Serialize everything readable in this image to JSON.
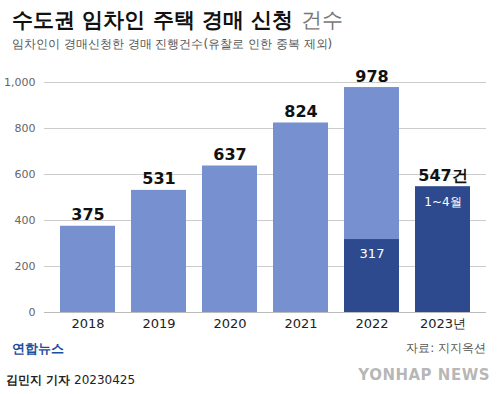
{
  "chart_data": {
    "type": "bar",
    "title": "수도권 임차인 주택 경매 신청 건수",
    "subtitle": "임차인이 경매신청한 경매 진행건수(유찰로 인한 중복 제외)",
    "categories": [
      "2018",
      "2019",
      "2020",
      "2021",
      "2022",
      "2023년"
    ],
    "values": [
      375,
      531,
      637,
      824,
      978,
      547
    ],
    "value_labels": [
      "375",
      "531",
      "637",
      "824",
      "978",
      "547건"
    ],
    "colors": [
      "#7690d0",
      "#7690d0",
      "#7690d0",
      "#7690d0",
      "#7690d0",
      "#2d4a8e"
    ],
    "inner_bars": {
      "values": [
        null,
        null,
        null,
        null,
        317,
        null
      ],
      "color": "#2d4a8e",
      "data_labels": true
    },
    "annotations": [
      {
        "category": "2023년",
        "text": "1~4월"
      }
    ],
    "ylim": [
      0,
      1000
    ],
    "yticks": [
      0,
      200,
      400,
      600,
      800,
      1000
    ],
    "grid": true,
    "data_labels": true,
    "source": "자료: 지지옥션",
    "logo": "연합뉴스",
    "byline": "김민지 기자",
    "date": "20230425",
    "watermark": "YONHAP NEWS"
  }
}
